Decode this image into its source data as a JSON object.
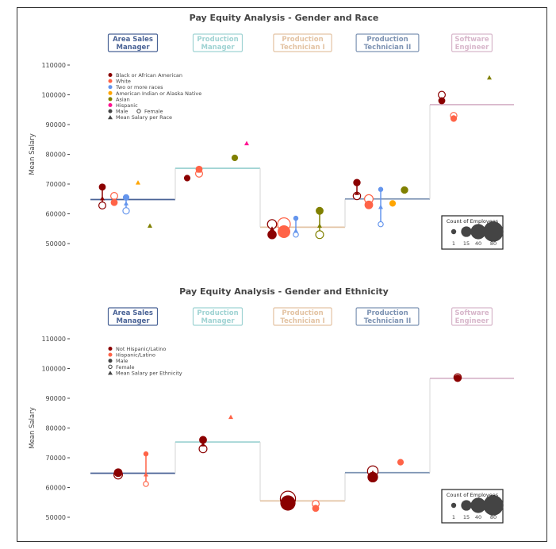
{
  "colors": {
    "jobs": [
      "#4a6396",
      "#9fd3d3",
      "#e3c3a3",
      "#7d93b3",
      "#d8b7cb"
    ],
    "race": [
      "#8b0000",
      "#ff6347",
      "#6495ed",
      "#ffa500",
      "#808000",
      "#ff1493"
    ],
    "ethnicity": [
      "#8b0000",
      "#ff6347"
    ],
    "text": "#444444"
  },
  "chart_data": [
    {
      "type": "scatter",
      "title": "Pay Equity Analysis - Gender and Race",
      "ylabel": "Mean Salary",
      "ylim": [
        50000,
        110000
      ],
      "yticks": [
        "110000",
        "100000",
        "90000",
        "80000",
        "70000",
        "60000",
        "50000"
      ],
      "jobs": [
        "Area Sales Manager",
        "Production Manager",
        "Production Technician I",
        "Production Technician II",
        "Software Engineer"
      ],
      "job_labels": [
        [
          "Area Sales",
          "Manager"
        ],
        [
          "Production",
          "Manager"
        ],
        [
          "Production",
          "Technician I"
        ],
        [
          "Production",
          "Technician II"
        ],
        [
          "Software",
          "Engineer"
        ]
      ],
      "job_mean_salary": [
        64800,
        75300,
        55500,
        65000,
        96700
      ],
      "groups": [
        "Black or African American",
        "White",
        "Two or more races",
        "American Indian or Alaska Native",
        "Asian",
        "Hispanic"
      ],
      "legend": [
        "Black or African American",
        "White",
        "Two or more races",
        "American Indian or Alaska Native",
        "Asian",
        "Hispanic"
      ],
      "legend_male": "Male",
      "legend_female": "Female",
      "legend_mean": "Mean Salary per Race",
      "points": [
        {
          "job": 0,
          "group": 0,
          "male": 69000,
          "female": 62800,
          "mean": 65200,
          "count": 4
        },
        {
          "job": 0,
          "group": 1,
          "male": 63800,
          "female": 66000,
          "mean": 64500,
          "count": 4
        },
        {
          "job": 0,
          "group": 2,
          "male": 65500,
          "female": 61000,
          "mean": 63500,
          "count": 3
        },
        {
          "job": 0,
          "group": 3,
          "mean": 70500
        },
        {
          "job": 0,
          "group": 4,
          "mean": 56000
        },
        {
          "job": 1,
          "group": 0,
          "male": 72000,
          "mean": 72000,
          "count": 3
        },
        {
          "job": 1,
          "group": 1,
          "male": 75000,
          "female": 73500,
          "mean": 74500,
          "count": 4
        },
        {
          "job": 1,
          "group": 4,
          "male": 78800,
          "mean": 78800,
          "count": 3
        },
        {
          "job": 1,
          "group": 5,
          "mean": 83700
        },
        {
          "job": 2,
          "group": 0,
          "male": 53000,
          "female": 56500,
          "mean": 55000,
          "count": 10
        },
        {
          "job": 2,
          "group": 1,
          "male": 54000,
          "female": 56500,
          "mean": 55000,
          "count": 25
        },
        {
          "job": 2,
          "group": 2,
          "male": 58500,
          "female": 53000,
          "mean": 54300,
          "count": 1
        },
        {
          "job": 2,
          "group": 4,
          "male": 61000,
          "female": 53000,
          "mean": 56000,
          "count": 6
        },
        {
          "job": 3,
          "group": 0,
          "male": 70500,
          "female": 66000,
          "mean": 67000,
          "count": 5
        },
        {
          "job": 3,
          "group": 1,
          "male": 63000,
          "female": 65000,
          "mean": 63500,
          "count": 8
        },
        {
          "job": 3,
          "group": 2,
          "male": 68200,
          "female": 56500,
          "mean": 62300,
          "count": 1
        },
        {
          "job": 3,
          "group": 3,
          "male": 63500,
          "mean": 63500,
          "count": 3
        },
        {
          "job": 3,
          "group": 4,
          "male": 68000,
          "female": 68000,
          "mean": 68000,
          "count": 3
        },
        {
          "job": 4,
          "group": 0,
          "male": 98000,
          "female": 100000,
          "mean": 98500,
          "count": 4
        },
        {
          "job": 4,
          "group": 1,
          "male": 92000,
          "female": 93000,
          "mean": 92500,
          "count": 3
        },
        {
          "job": 4,
          "group": 4,
          "mean": 105800
        }
      ],
      "size_legend": {
        "title": "Count of Employees",
        "sizes": [
          "1",
          "15",
          "40",
          "80"
        ]
      }
    },
    {
      "type": "scatter",
      "title": "Pay Equity Analysis - Gender and Ethnicity",
      "ylabel": "Mean Salary",
      "ylim": [
        50000,
        110000
      ],
      "yticks": [
        "110000",
        "100000",
        "90000",
        "80000",
        "70000",
        "60000",
        "50000"
      ],
      "jobs": [
        "Area Sales Manager",
        "Production Manager",
        "Production Technician I",
        "Production Technician II",
        "Software Engineer"
      ],
      "job_labels": [
        [
          "Area Sales",
          "Manager"
        ],
        [
          "Production",
          "Manager"
        ],
        [
          "Production",
          "Technician I"
        ],
        [
          "Production",
          "Technician II"
        ],
        [
          "Software",
          "Engineer"
        ]
      ],
      "job_mean_salary": [
        64800,
        75300,
        55500,
        65000,
        96700
      ],
      "groups": [
        "Not Hispanic/Latino",
        "Hispanic/Latino"
      ],
      "legend": [
        "Not Hispanic/Latino",
        "Hispanic/Latino"
      ],
      "legend_male": "Male",
      "legend_female": "Female",
      "legend_mean": "Mean Salary per Ethnicity",
      "points": [
        {
          "job": 0,
          "group": 0,
          "male": 65000,
          "female": 64300,
          "mean": 64800,
          "count": 8
        },
        {
          "job": 0,
          "group": 1,
          "male": 71300,
          "female": 61200,
          "mean": 64400,
          "count": 1
        },
        {
          "job": 1,
          "group": 0,
          "male": 76000,
          "female": 73000,
          "mean": 74500,
          "count": 6
        },
        {
          "job": 1,
          "group": 1,
          "mean": 83700
        },
        {
          "job": 2,
          "group": 0,
          "male": 54800,
          "female": 56200,
          "mean": 56000,
          "count": 40
        },
        {
          "job": 2,
          "group": 1,
          "male": 53000,
          "female": 54500,
          "mean": 53500,
          "count": 4
        },
        {
          "job": 3,
          "group": 0,
          "male": 63500,
          "female": 65500,
          "mean": 65000,
          "count": 15
        },
        {
          "job": 3,
          "group": 1,
          "male": 68500,
          "mean": 68500,
          "count": 3
        },
        {
          "job": 4,
          "group": 0,
          "male": 96700,
          "female": 97000,
          "mean": 96700,
          "count": 5
        }
      ],
      "size_legend": {
        "title": "Count of Employees",
        "sizes": [
          "1",
          "15",
          "40",
          "80"
        ]
      }
    }
  ]
}
